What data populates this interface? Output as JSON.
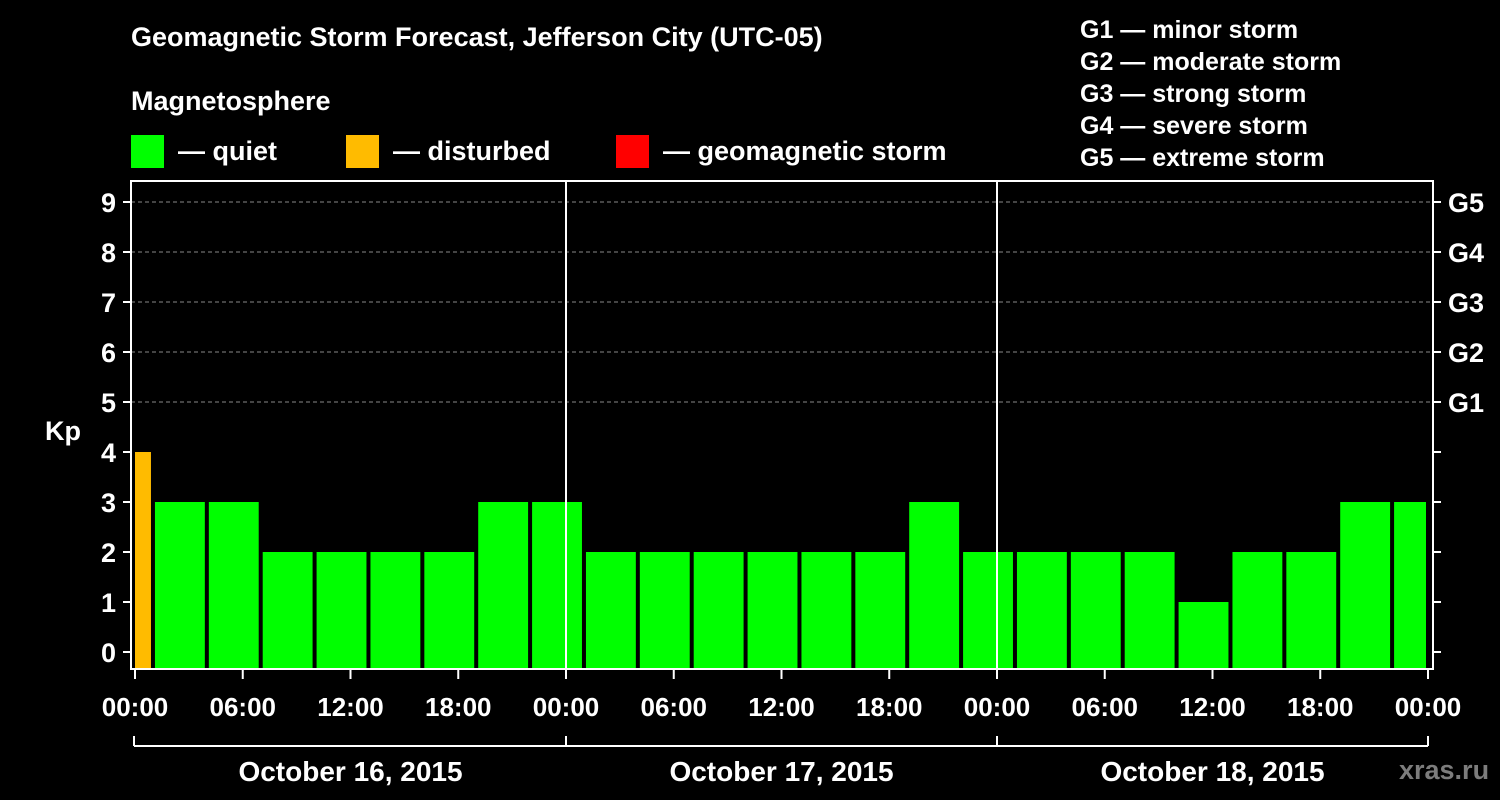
{
  "chart_data": {
    "type": "bar",
    "title": "Geomagnetic Storm Forecast, Jefferson City (UTC-05)",
    "ylabel": "Kp",
    "ylim": [
      0,
      9
    ],
    "yticks": [
      "0",
      "1",
      "2",
      "3",
      "4",
      "5",
      "6",
      "7",
      "8",
      "9"
    ],
    "right_ticks": [
      {
        "kp": 5,
        "label": "G1"
      },
      {
        "kp": 6,
        "label": "G2"
      },
      {
        "kp": 7,
        "label": "G3"
      },
      {
        "kp": 8,
        "label": "G4"
      },
      {
        "kp": 9,
        "label": "G5"
      }
    ],
    "xticks": [
      "00:00",
      "06:00",
      "12:00",
      "18:00",
      "00:00",
      "06:00",
      "12:00",
      "18:00",
      "00:00",
      "06:00",
      "12:00",
      "18:00",
      "00:00"
    ],
    "x_range_hours": [
      0,
      72
    ],
    "days": [
      "October 16, 2015",
      "October 17, 2015",
      "October 18, 2015"
    ],
    "bars": [
      {
        "start": 0,
        "end": 1,
        "kp": 4,
        "status": "disturbed"
      },
      {
        "start": 1,
        "end": 4,
        "kp": 3,
        "status": "quiet"
      },
      {
        "start": 4,
        "end": 7,
        "kp": 3,
        "status": "quiet"
      },
      {
        "start": 7,
        "end": 10,
        "kp": 2,
        "status": "quiet"
      },
      {
        "start": 10,
        "end": 13,
        "kp": 2,
        "status": "quiet"
      },
      {
        "start": 13,
        "end": 16,
        "kp": 2,
        "status": "quiet"
      },
      {
        "start": 16,
        "end": 19,
        "kp": 2,
        "status": "quiet"
      },
      {
        "start": 19,
        "end": 22,
        "kp": 3,
        "status": "quiet"
      },
      {
        "start": 22,
        "end": 25,
        "kp": 3,
        "status": "quiet"
      },
      {
        "start": 25,
        "end": 28,
        "kp": 2,
        "status": "quiet"
      },
      {
        "start": 28,
        "end": 31,
        "kp": 2,
        "status": "quiet"
      },
      {
        "start": 31,
        "end": 34,
        "kp": 2,
        "status": "quiet"
      },
      {
        "start": 34,
        "end": 37,
        "kp": 2,
        "status": "quiet"
      },
      {
        "start": 37,
        "end": 40,
        "kp": 2,
        "status": "quiet"
      },
      {
        "start": 40,
        "end": 43,
        "kp": 2,
        "status": "quiet"
      },
      {
        "start": 43,
        "end": 46,
        "kp": 3,
        "status": "quiet"
      },
      {
        "start": 46,
        "end": 49,
        "kp": 2,
        "status": "quiet"
      },
      {
        "start": 49,
        "end": 52,
        "kp": 2,
        "status": "quiet"
      },
      {
        "start": 52,
        "end": 55,
        "kp": 2,
        "status": "quiet"
      },
      {
        "start": 55,
        "end": 58,
        "kp": 2,
        "status": "quiet"
      },
      {
        "start": 58,
        "end": 61,
        "kp": 1,
        "status": "quiet"
      },
      {
        "start": 61,
        "end": 64,
        "kp": 2,
        "status": "quiet"
      },
      {
        "start": 64,
        "end": 67,
        "kp": 2,
        "status": "quiet"
      },
      {
        "start": 67,
        "end": 70,
        "kp": 3,
        "status": "quiet"
      },
      {
        "start": 70,
        "end": 72,
        "kp": 3,
        "status": "quiet"
      }
    ]
  },
  "magnetosphere": {
    "heading": "Magnetosphere",
    "items": [
      {
        "label": "— quiet",
        "color": "#00ff00",
        "status": "quiet"
      },
      {
        "label": "— disturbed",
        "color": "#ffbb00",
        "status": "disturbed"
      },
      {
        "label": "— geomagnetic storm",
        "color": "#ff0000",
        "status": "storm"
      }
    ]
  },
  "g_scale": [
    "G1 — minor storm",
    "G2 — moderate storm",
    "G3 — strong storm",
    "G4 — severe storm",
    "G5 — extreme storm"
  ],
  "watermark": "xras.ru"
}
